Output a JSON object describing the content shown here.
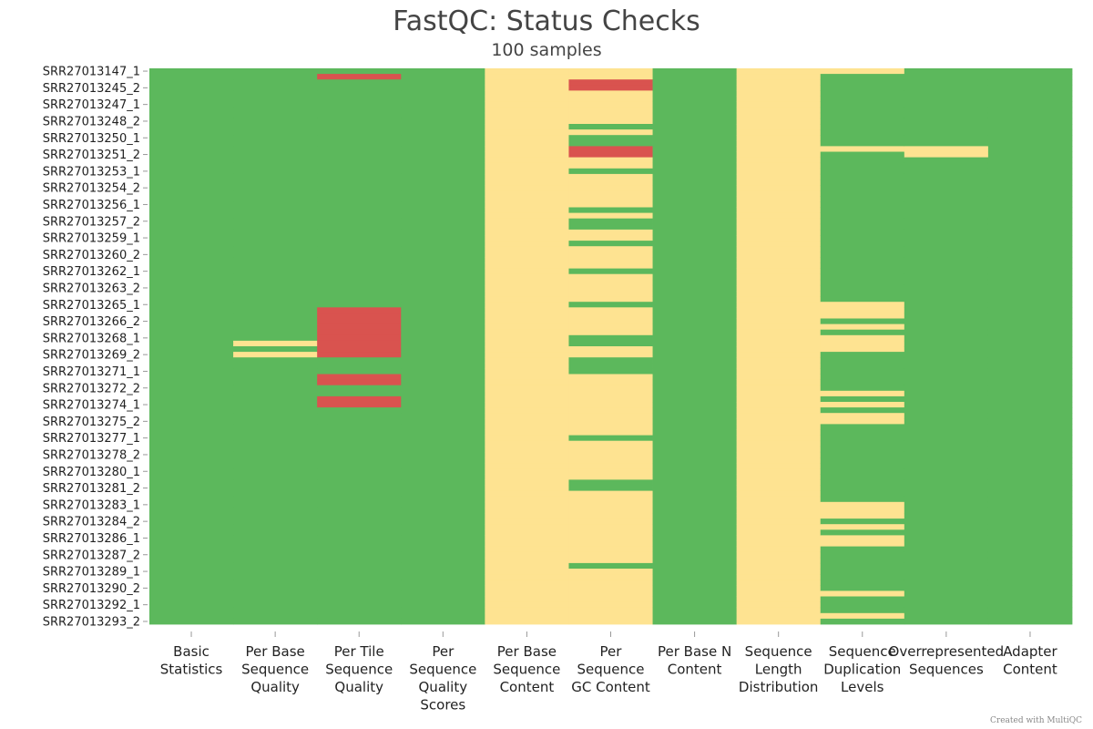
{
  "chart_data": {
    "type": "heatmap",
    "title": "FastQC: Status Checks",
    "subtitle": "100 samples",
    "colors": {
      "pass": "#5cb85c",
      "warn": "#fee391",
      "fail": "#d9534f"
    },
    "columns": [
      "Basic Statistics",
      "Per Base Sequence Quality",
      "Per Tile Sequence Quality",
      "Per Sequence Quality Scores",
      "Per Base Sequence Content",
      "Per Sequence GC Content",
      "Per Base N Content",
      "Sequence Length Distribution",
      "Sequence Duplication Levels",
      "Overrepresented Sequences",
      "Adapter Content"
    ],
    "column_labels": [
      [
        "Basic",
        "Statistics"
      ],
      [
        "Per Base",
        "Sequence",
        "Quality"
      ],
      [
        "Per Tile",
        "Sequence",
        "Quality"
      ],
      [
        "Per",
        "Sequence",
        "Quality",
        "Scores"
      ],
      [
        "Per Base",
        "Sequence",
        "Content"
      ],
      [
        "Per",
        "Sequence",
        "GC Content"
      ],
      [
        "Per Base N",
        "Content"
      ],
      [
        "Sequence",
        "Length",
        "Distribution"
      ],
      [
        "Sequence",
        "Duplication",
        "Levels"
      ],
      [
        "Overrepresented",
        "Sequences"
      ],
      [
        "Adapter",
        "Content"
      ]
    ],
    "n_samples": 100,
    "visible_row_labels": [
      "SRR27013147_1",
      "SRR27013245_2",
      "SRR27013247_1",
      "SRR27013248_2",
      "SRR27013250_1",
      "SRR27013251_2",
      "SRR27013253_1",
      "SRR27013254_2",
      "SRR27013256_1",
      "SRR27013257_2",
      "SRR27013259_1",
      "SRR27013260_2",
      "SRR27013262_1",
      "SRR27013263_2",
      "SRR27013265_1",
      "SRR27013266_2",
      "SRR27013268_1",
      "SRR27013269_2",
      "SRR27013271_1",
      "SRR27013272_2",
      "SRR27013274_1",
      "SRR27013275_2",
      "SRR27013277_1",
      "SRR27013278_2",
      "SRR27013280_1",
      "SRR27013281_2",
      "SRR27013283_1",
      "SRR27013284_2",
      "SRR27013286_1",
      "SRR27013287_2",
      "SRR27013289_1",
      "SRR27013290_2",
      "SRR27013292_1",
      "SRR27013293_2"
    ],
    "label_row_step": 3,
    "column_defaults": [
      "pass",
      "pass",
      "pass",
      "pass",
      "warn",
      "warn",
      "pass",
      "warn",
      "pass",
      "pass",
      "pass"
    ],
    "exceptions": [
      {
        "column": 1,
        "status": "warn",
        "rows": [
          49,
          51
        ]
      },
      {
        "column": 2,
        "status": "fail",
        "rows": [
          1,
          43,
          44,
          45,
          46,
          47,
          48,
          49,
          50,
          51,
          55,
          56,
          59,
          60
        ]
      },
      {
        "column": 5,
        "status": "fail",
        "rows": [
          2,
          3,
          14,
          15
        ]
      },
      {
        "column": 5,
        "status": "pass",
        "rows": [
          10,
          12,
          13,
          18,
          25,
          27,
          28,
          31,
          36,
          42,
          48,
          49,
          52,
          53,
          54,
          66,
          74,
          75,
          89
        ]
      },
      {
        "column": 8,
        "status": "warn",
        "rows": [
          0,
          14,
          42,
          43,
          44,
          46,
          48,
          49,
          50,
          58,
          60,
          62,
          63,
          78,
          79,
          80,
          82,
          84,
          85,
          94,
          98
        ]
      },
      {
        "column": 9,
        "status": "warn",
        "rows": [
          14,
          15
        ]
      }
    ],
    "credit": "Created with MultiQC"
  }
}
